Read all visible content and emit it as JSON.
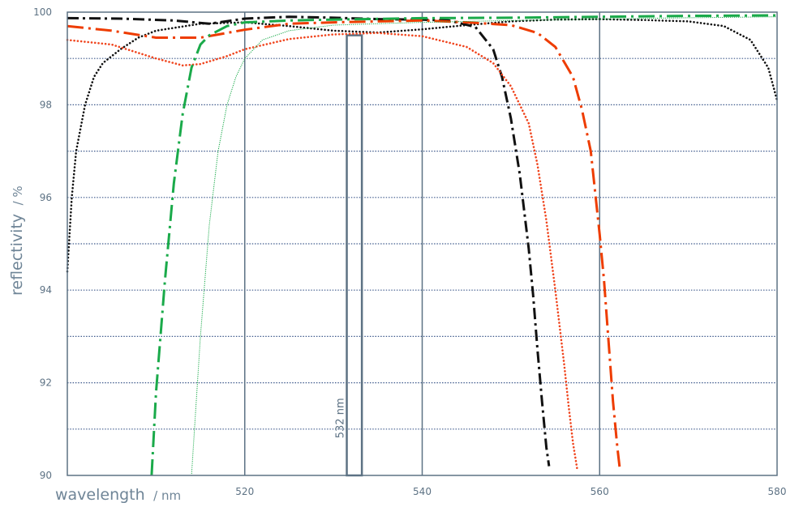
{
  "chart_data": {
    "type": "line",
    "xlabel": "wavelength",
    "xunit": "/ nm",
    "ylabel": "reflectivity",
    "yunit": "/ %",
    "xlim": [
      500,
      580
    ],
    "ylim": [
      90,
      100
    ],
    "xticks": [
      520,
      540,
      560,
      580
    ],
    "yticks": [
      90,
      92,
      94,
      96,
      98,
      100
    ],
    "grid": {
      "horizontal": "dotted, every 1 %",
      "vertical": "solid at 520, 540, 560 nm"
    },
    "colors": {
      "grid": "#3f5a8c",
      "axis": "#5d7284",
      "black": "#111111",
      "red": "#ee3c00",
      "orange_red": "#f0451e",
      "green": "#1aaa4a"
    },
    "annotations": [
      {
        "text": "532 nm",
        "x": 532,
        "style": "narrow rectangle band 531.5–533.2 nm, from 90 % to 99.5 %"
      }
    ],
    "series": [
      {
        "color": "#111111",
        "dash": "dash-dot",
        "x": [
          500,
          506,
          512,
          516,
          520,
          525,
          530,
          535,
          540,
          543,
          546,
          548,
          549,
          550,
          551,
          552,
          552.5,
          553,
          553.5,
          554,
          554.3
        ],
        "y": [
          99.87,
          99.86,
          99.82,
          99.75,
          99.86,
          99.9,
          99.88,
          99.85,
          99.84,
          99.82,
          99.68,
          99.2,
          98.6,
          97.7,
          96.5,
          94.9,
          93.9,
          92.7,
          91.6,
          90.6,
          90.2
        ]
      },
      {
        "color": "#111111",
        "dash": "dotted",
        "x": [
          500,
          500.5,
          501,
          502,
          503,
          504,
          506,
          508,
          510,
          515,
          520,
          525,
          530,
          535,
          540,
          545,
          550,
          555,
          560,
          565,
          570,
          574,
          577,
          579,
          580
        ],
        "y": [
          94.4,
          96.0,
          97.0,
          98.0,
          98.6,
          98.9,
          99.2,
          99.45,
          99.6,
          99.75,
          99.78,
          99.7,
          99.6,
          99.56,
          99.63,
          99.72,
          99.8,
          99.84,
          99.85,
          99.83,
          99.8,
          99.7,
          99.4,
          98.8,
          98.1
        ]
      },
      {
        "color": "#ee3c00",
        "dash": "long-dash-dot",
        "x": [
          500,
          505,
          510,
          515,
          520,
          525,
          530,
          535,
          540,
          545,
          550,
          553,
          555,
          557,
          558,
          559,
          560,
          560.5,
          561,
          561.5,
          562,
          562.3
        ],
        "y": [
          99.7,
          99.6,
          99.45,
          99.45,
          99.62,
          99.75,
          99.78,
          99.8,
          99.82,
          99.78,
          99.72,
          99.55,
          99.25,
          98.6,
          97.9,
          97.0,
          95.2,
          94.2,
          92.9,
          91.6,
          90.6,
          90.1
        ]
      },
      {
        "color": "#f0451e",
        "dash": "dotted",
        "x": [
          500,
          505,
          510,
          513,
          515,
          518,
          520,
          525,
          530,
          535,
          540,
          545,
          548,
          550,
          552,
          553,
          554,
          555,
          556,
          556.5,
          557,
          557.5
        ],
        "y": [
          99.4,
          99.3,
          99.0,
          98.85,
          98.88,
          99.05,
          99.2,
          99.42,
          99.52,
          99.55,
          99.48,
          99.25,
          98.9,
          98.4,
          97.6,
          96.7,
          95.5,
          94.0,
          92.4,
          91.5,
          90.7,
          90.1
        ]
      },
      {
        "color": "#1aaa4a",
        "dash": "long-dash-dot",
        "x": [
          509.5,
          510,
          511,
          512,
          513,
          514,
          515,
          516,
          518,
          520,
          525,
          530,
          540,
          550,
          560,
          570,
          580
        ],
        "y": [
          90.0,
          91.8,
          94.2,
          96.3,
          97.8,
          98.8,
          99.3,
          99.5,
          99.7,
          99.78,
          99.82,
          99.84,
          99.87,
          99.88,
          99.9,
          99.92,
          99.93
        ]
      },
      {
        "color": "#1aaa4a",
        "dash": "thin-dotted",
        "x": [
          514,
          514.5,
          515,
          516,
          517,
          518,
          519,
          520,
          522,
          525,
          530,
          540,
          550,
          560,
          570,
          580
        ],
        "y": [
          90.0,
          91.5,
          93.0,
          95.4,
          97.0,
          98.0,
          98.6,
          99.0,
          99.4,
          99.6,
          99.72,
          99.78,
          99.82,
          99.85,
          99.88,
          99.9
        ]
      }
    ]
  }
}
